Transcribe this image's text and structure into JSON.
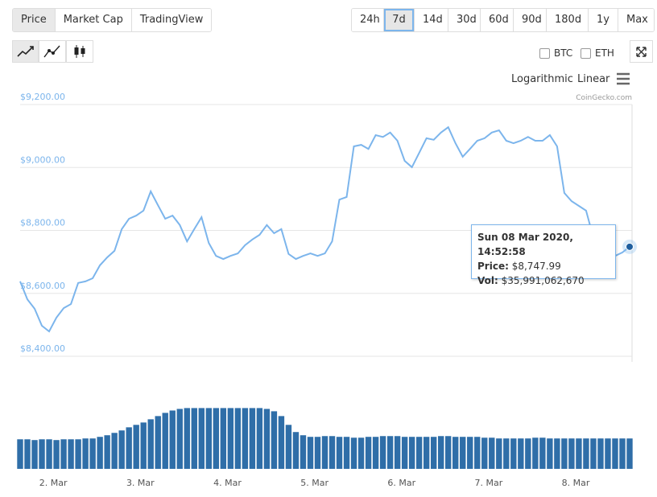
{
  "tabs": [
    "Price",
    "Market Cap",
    "TradingView"
  ],
  "ranges": [
    "24h",
    "7d",
    "14d",
    "30d",
    "60d",
    "90d",
    "180d",
    "1y",
    "Max"
  ],
  "compare": [
    "BTC",
    "ETH"
  ],
  "scale_options": [
    "Logarithmic",
    "Linear"
  ],
  "credit": "CoinGecko.com",
  "tooltip": {
    "date": "Sun 08 Mar 2020, 14:52:58",
    "price_label": "Price:",
    "price": "$8,747.99",
    "vol_label": "Vol:",
    "vol": "$35,991,062,670"
  },
  "chart_data": [
    {
      "type": "line",
      "color": "#7cb5ec",
      "grid": true,
      "values": [
        8638,
        8581,
        8551,
        8497,
        8479,
        8523,
        8553,
        8566,
        8633,
        8638,
        8648,
        8689,
        8714,
        8735,
        8804,
        8837,
        8847,
        8863,
        8924,
        8880,
        8837,
        8847,
        8817,
        8765,
        8804,
        8842,
        8760,
        8719,
        8709,
        8719,
        8727,
        8753,
        8771,
        8786,
        8817,
        8791,
        8804,
        8725,
        8709,
        8719,
        8727,
        8719,
        8727,
        8765,
        8898,
        8906,
        9067,
        9072,
        9059,
        9103,
        9097,
        9111,
        9085,
        9021,
        9001,
        9047,
        9093,
        9088,
        9111,
        9128,
        9077,
        9034,
        9059,
        9085,
        9093,
        9111,
        9118,
        9085,
        9077,
        9085,
        9097,
        9085,
        9085,
        9103,
        9067,
        8919,
        8893,
        8878,
        8863,
        8778,
        8725,
        8735,
        8719,
        8730,
        8747.99
      ],
      "xlim": [
        0,
        84
      ],
      "ylim": [
        8400,
        9200
      ],
      "yticks": [
        {
          "value": 8400,
          "label": "$8,400.00"
        },
        {
          "value": 8600,
          "label": "$8,600.00"
        },
        {
          "value": 8800,
          "label": "$8,800.00"
        },
        {
          "value": 9000,
          "label": "$9,000.00"
        },
        {
          "value": 9200,
          "label": "$9,200.00"
        }
      ]
    },
    {
      "type": "bar",
      "color": "#2f6ea8",
      "values": [
        35000000000.0,
        35000000000.0,
        34100000000.0,
        35000000000.0,
        35000000000.0,
        34100000000.0,
        35000000000.0,
        35000000000.0,
        35000000000.0,
        36000000000.0,
        36000000000.0,
        37900000000.0,
        39800000000.0,
        42600000000.0,
        45500000000.0,
        49200000000.0,
        52100000000.0,
        54900000000.0,
        58700000000.0,
        62500000000.0,
        66300000000.0,
        69100000000.0,
        71000000000.0,
        72000000000.0,
        72000000000.0,
        72000000000.0,
        72000000000.0,
        72000000000.0,
        72000000000.0,
        72000000000.0,
        72000000000.0,
        72000000000.0,
        72000000000.0,
        72000000000.0,
        71000000000.0,
        68200000000.0,
        62500000000.0,
        52100000000.0,
        43600000000.0,
        39800000000.0,
        37900000000.0,
        37900000000.0,
        38800000000.0,
        38800000000.0,
        37900000000.0,
        37900000000.0,
        36900000000.0,
        36900000000.0,
        37900000000.0,
        37900000000.0,
        38800000000.0,
        38800000000.0,
        38800000000.0,
        37900000000.0,
        37900000000.0,
        37900000000.0,
        37900000000.0,
        37900000000.0,
        38800000000.0,
        38800000000.0,
        37900000000.0,
        37900000000.0,
        37900000000.0,
        37900000000.0,
        36900000000.0,
        36900000000.0,
        36000000000.0,
        36000000000.0,
        36000000000.0,
        36000000000.0,
        36000000000.0,
        36900000000.0,
        36900000000.0,
        36000000000.0,
        36000000000.0,
        36000000000.0,
        36000000000.0,
        36000000000.0,
        36000000000.0,
        36000000000.0,
        36000000000.0,
        36000000000.0,
        36000000000.0,
        36000000000.0,
        35991062670
      ],
      "xlim": [
        0,
        84
      ],
      "ylim": [
        0,
        80000000000
      ],
      "xticks": [
        {
          "value": 4.57,
          "label": "2. Mar"
        },
        {
          "value": 16.57,
          "label": "3. Mar"
        },
        {
          "value": 28.57,
          "label": "4. Mar"
        },
        {
          "value": 40.57,
          "label": "5. Mar"
        },
        {
          "value": 52.57,
          "label": "6. Mar"
        },
        {
          "value": 64.57,
          "label": "7. Mar"
        },
        {
          "value": 76.57,
          "label": "8. Mar"
        }
      ]
    }
  ]
}
